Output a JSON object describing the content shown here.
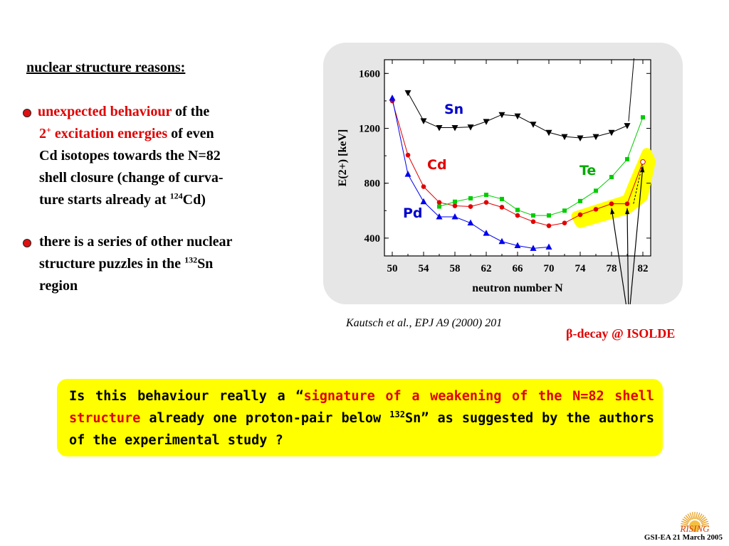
{
  "slide": {
    "heading": "nuclear structure reasons:",
    "bullet1": {
      "red1": "unexpected behaviour",
      "t1": " of the",
      "sup1": "2",
      "sup1b": "+",
      "red2": " excitation energies",
      "t2": " of even",
      "line3": "Cd isotopes towards the N=82",
      "line4": "shell closure (change of curva-",
      "line5a": "ture starts already at ",
      "line5sup": "124",
      "line5b": "Cd)"
    },
    "bullet2": {
      "line1": "there is a series of other nuclear",
      "line2a": "structure puzzles in the ",
      "line2sup": "132",
      "line2b": "Sn",
      "line3": "region"
    },
    "citation": "Kautsch et al., EPJ A9 (2000) 201",
    "beta_label": "β-decay @ ISOLDE",
    "question": {
      "p1": "Is this behaviour really a “",
      "red": "signature of a weakening of the N=82 shell structure",
      "p2": " already one proton-pair below ",
      "sup": "132",
      "p3": "Sn” as suggested by the authors of the experimental study ?"
    },
    "footer": "GSI-EA 21 March 2005",
    "logo_text": "RISING"
  },
  "chart_data": {
    "type": "scatter",
    "xlabel": "neutron number N",
    "ylabel": "E(2+) [keV]",
    "xlim": [
      49,
      83
    ],
    "ylim": [
      270,
      1700
    ],
    "xticks": [
      50,
      54,
      58,
      62,
      66,
      70,
      74,
      78,
      82
    ],
    "yticks": [
      400,
      800,
      1200,
      1600
    ],
    "series": [
      {
        "name": "Sn",
        "color": "#000000",
        "marker": "triangle-down",
        "label_color": "#0000cc",
        "points": [
          [
            52,
            1460
          ],
          [
            54,
            1255
          ],
          [
            56,
            1205
          ],
          [
            58,
            1205
          ],
          [
            60,
            1210
          ],
          [
            62,
            1250
          ],
          [
            64,
            1300
          ],
          [
            66,
            1290
          ],
          [
            68,
            1230
          ],
          [
            70,
            1170
          ],
          [
            72,
            1140
          ],
          [
            74,
            1130
          ],
          [
            76,
            1140
          ],
          [
            78,
            1170
          ],
          [
            80,
            1220
          ]
        ]
      },
      {
        "name": "Cd",
        "color": "#e00000",
        "marker": "circle",
        "label_color": "#e00000",
        "points": [
          [
            50,
            1400
          ],
          [
            52,
            1005
          ],
          [
            54,
            775
          ],
          [
            56,
            660
          ],
          [
            58,
            635
          ],
          [
            60,
            630
          ],
          [
            62,
            660
          ],
          [
            64,
            625
          ],
          [
            66,
            565
          ],
          [
            68,
            520
          ],
          [
            70,
            490
          ],
          [
            72,
            510
          ],
          [
            74,
            570
          ],
          [
            76,
            610
          ],
          [
            78,
            650
          ],
          [
            80,
            650
          ],
          [
            82,
            955
          ]
        ]
      },
      {
        "name": "Te",
        "color": "#00cc00",
        "marker": "square",
        "label_color": "#00aa00",
        "points": [
          [
            56,
            630
          ],
          [
            58,
            665
          ],
          [
            60,
            690
          ],
          [
            62,
            715
          ],
          [
            64,
            685
          ],
          [
            66,
            605
          ],
          [
            68,
            565
          ],
          [
            70,
            565
          ],
          [
            72,
            600
          ],
          [
            74,
            670
          ],
          [
            76,
            745
          ],
          [
            78,
            845
          ],
          [
            80,
            975
          ],
          [
            82,
            1280
          ]
        ]
      },
      {
        "name": "Pd",
        "color": "#0000ee",
        "marker": "triangle-up",
        "label_color": "#0000cc",
        "points": [
          [
            50,
            1420
          ],
          [
            52,
            865
          ],
          [
            54,
            665
          ],
          [
            56,
            555
          ],
          [
            58,
            555
          ],
          [
            60,
            510
          ],
          [
            62,
            435
          ],
          [
            64,
            375
          ],
          [
            66,
            345
          ],
          [
            68,
            325
          ],
          [
            70,
            335
          ]
        ]
      }
    ]
  }
}
